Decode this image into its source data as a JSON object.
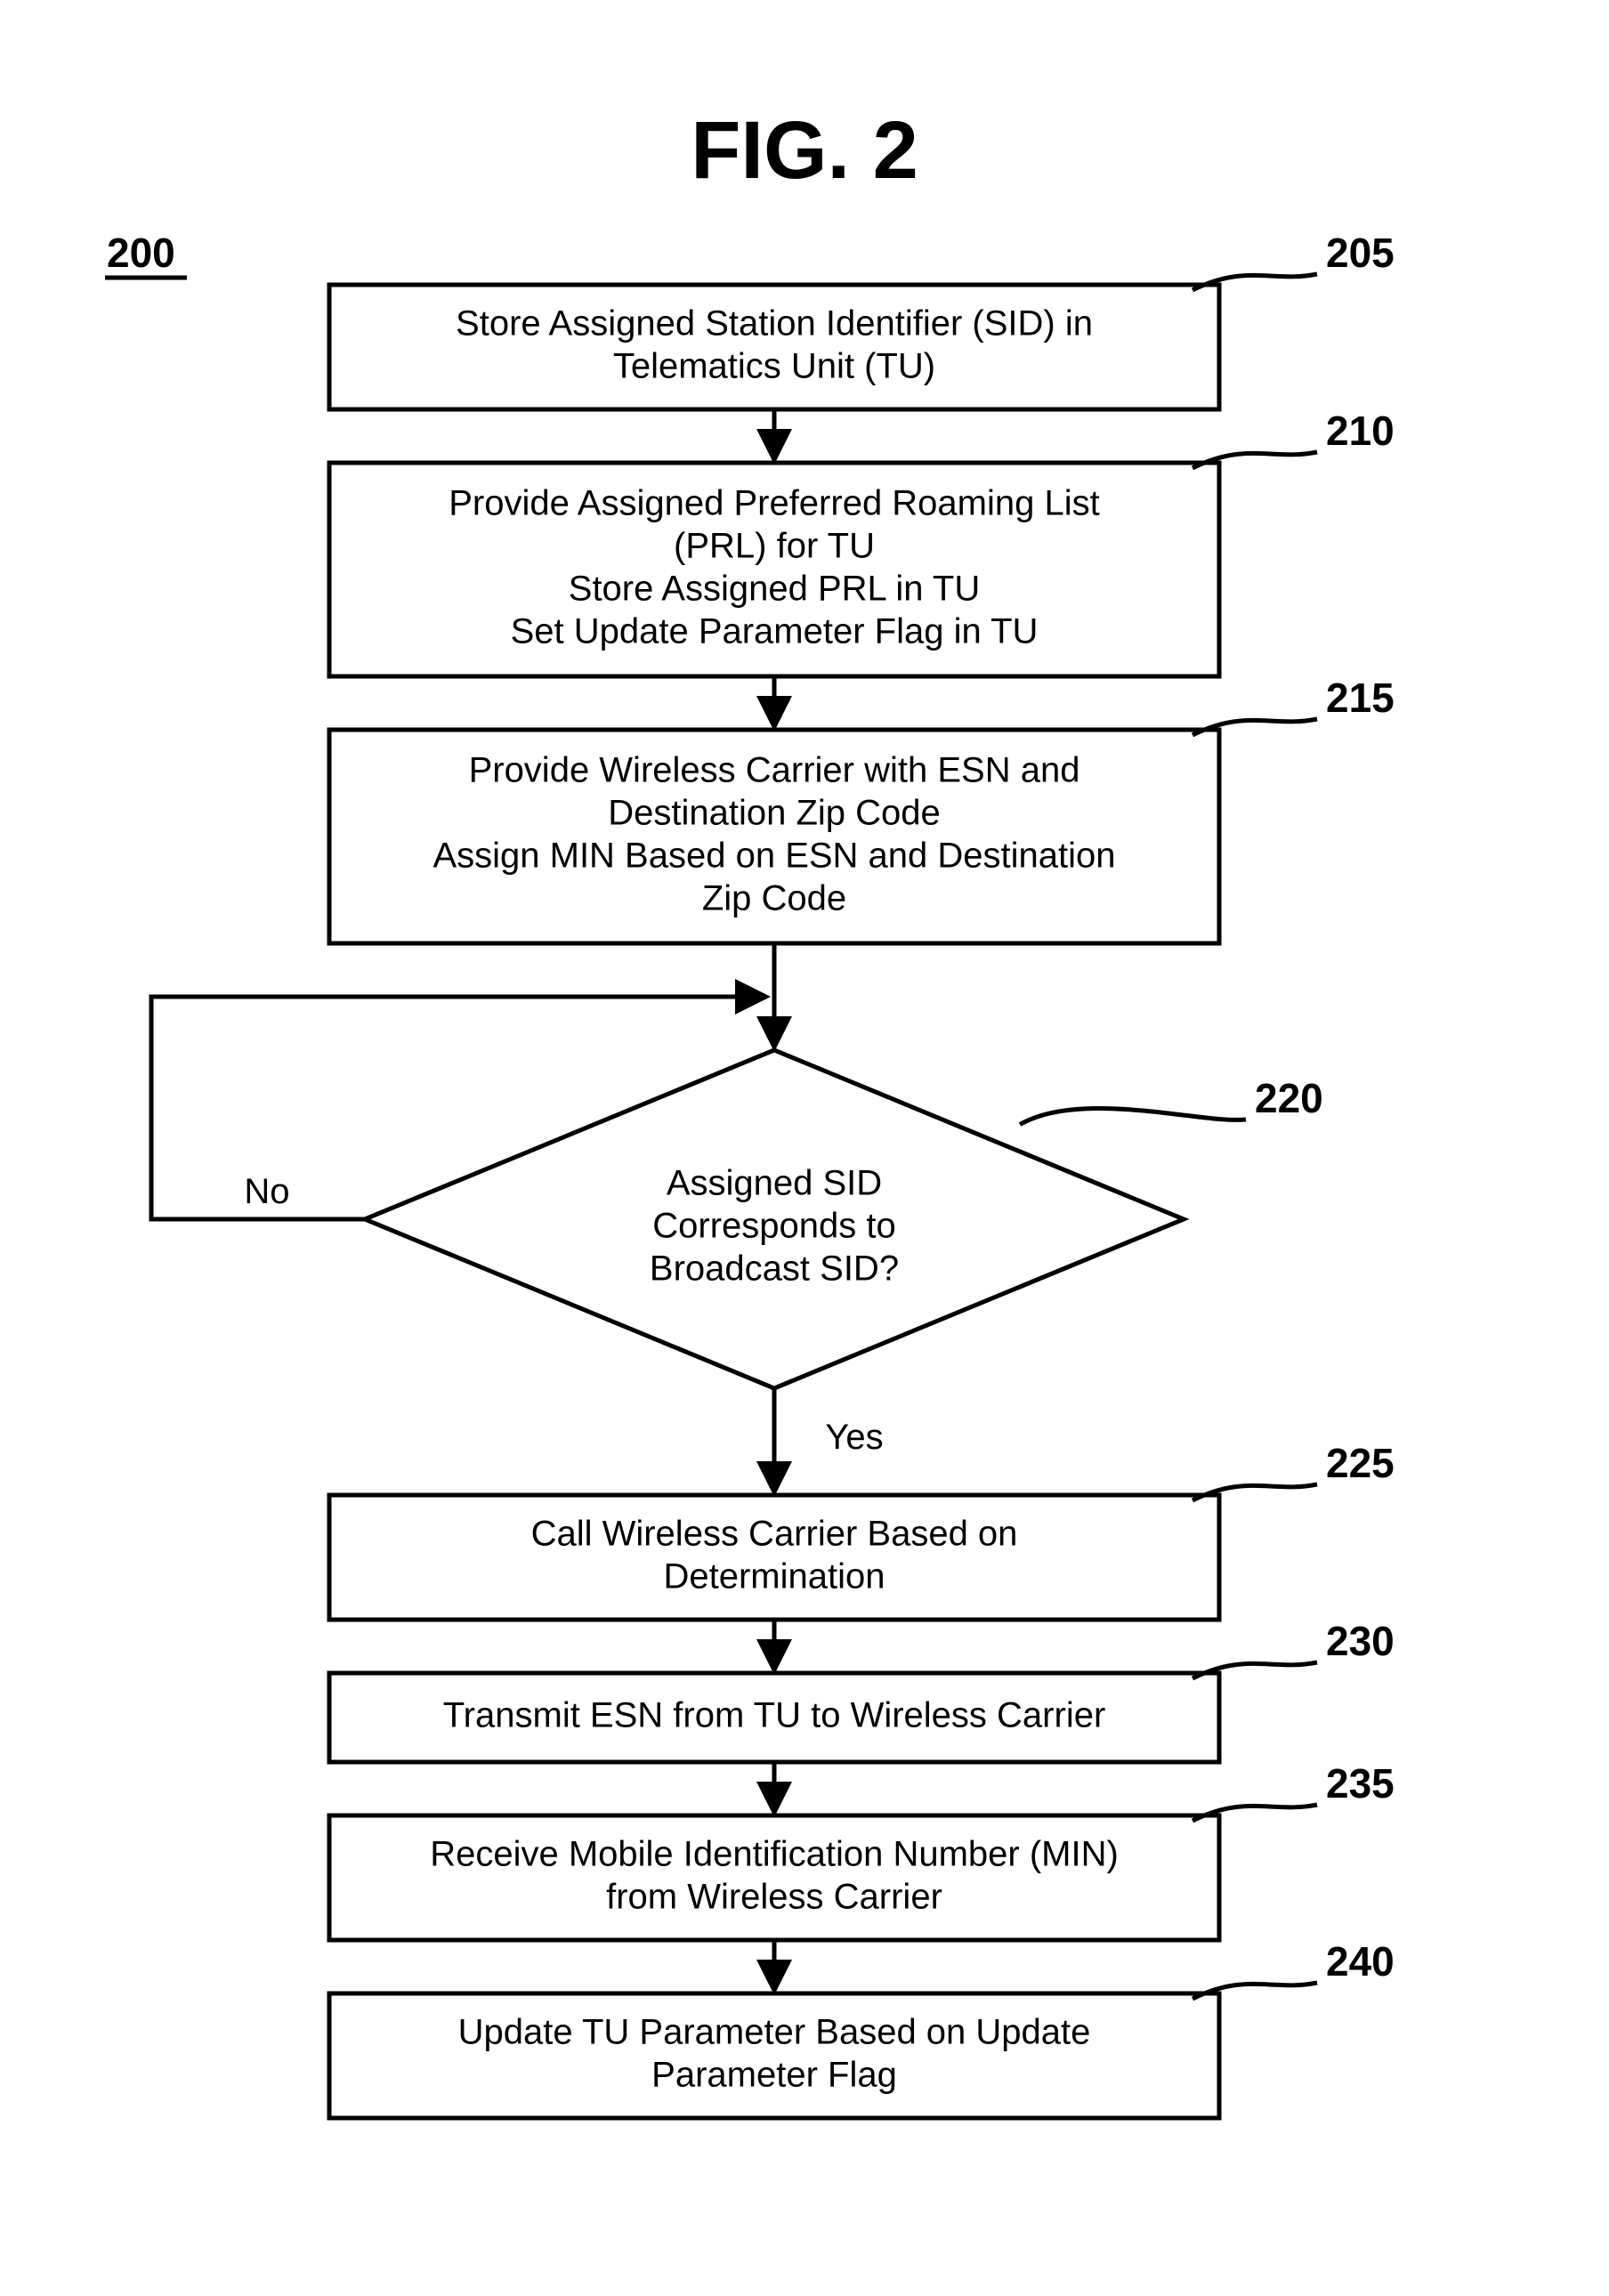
{
  "figure": {
    "title": "FIG. 2",
    "ref200": "200",
    "title_fontsize": 92,
    "ref_fontsize": 46,
    "box_fontsize": 40,
    "label_fontsize": 40,
    "line_width": 5,
    "box_line_width": 5,
    "colors": {
      "stroke": "#000000",
      "bg": "#ffffff",
      "text": "#000000"
    }
  },
  "boxes": {
    "b205": {
      "ref": "205",
      "lines": [
        "Store Assigned Station Identifier (SID) in",
        "Telematics Unit (TU)"
      ]
    },
    "b210": {
      "ref": "210",
      "lines": [
        "Provide Assigned Preferred Roaming List",
        "(PRL) for TU",
        "Store Assigned PRL in TU",
        "Set Update Parameter Flag in TU"
      ]
    },
    "b215": {
      "ref": "215",
      "lines": [
        "Provide Wireless Carrier with ESN and",
        "Destination Zip Code",
        "Assign MIN Based on ESN and Destination",
        "Zip Code"
      ]
    },
    "b220": {
      "ref": "220",
      "lines": [
        "Assigned SID",
        "Corresponds to",
        "Broadcast SID?"
      ]
    },
    "b225": {
      "ref": "225",
      "lines": [
        "Call Wireless Carrier Based on",
        "Determination"
      ]
    },
    "b230": {
      "ref": "230",
      "lines": [
        "Transmit ESN from TU to Wireless Carrier"
      ]
    },
    "b235": {
      "ref": "235",
      "lines": [
        "Receive Mobile Identification Number (MIN)",
        "from Wireless Carrier"
      ]
    },
    "b240": {
      "ref": "240",
      "lines": [
        "Update TU Parameter Based on Update",
        "Parameter Flag"
      ]
    }
  },
  "labels": {
    "no": "No",
    "yes": "Yes"
  }
}
